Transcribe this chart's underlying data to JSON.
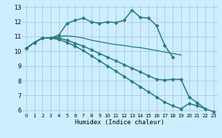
{
  "title": "",
  "xlabel": "Humidex (Indice chaleur)",
  "background_color": "#cceeff",
  "grid_color": "#aacccc",
  "line_color": "#2d7d7d",
  "xlim": [
    -0.5,
    23.5
  ],
  "ylim": [
    5.8,
    13.2
  ],
  "xticks": [
    0,
    1,
    2,
    3,
    4,
    5,
    6,
    7,
    8,
    9,
    10,
    11,
    12,
    13,
    14,
    15,
    16,
    17,
    18,
    19,
    20,
    21,
    22,
    23
  ],
  "yticks": [
    6,
    7,
    8,
    9,
    10,
    11,
    12,
    13
  ],
  "series": [
    {
      "x": [
        0,
        1,
        2,
        3,
        4,
        5,
        6,
        7,
        8,
        9,
        10,
        11,
        12,
        13,
        14,
        15,
        16,
        17,
        18
      ],
      "y": [
        10.2,
        10.6,
        10.9,
        10.9,
        11.1,
        11.9,
        12.1,
        12.25,
        12.0,
        11.9,
        12.0,
        11.95,
        12.1,
        12.8,
        12.3,
        12.25,
        11.75,
        10.4,
        9.6
      ],
      "marker": "D",
      "markersize": 2.5,
      "linewidth": 1.2
    },
    {
      "x": [
        0,
        1,
        2,
        3,
        4,
        5,
        6,
        7,
        8,
        9,
        10,
        11,
        12,
        13,
        14,
        15,
        16,
        17,
        18,
        19
      ],
      "y": [
        10.2,
        10.6,
        10.9,
        10.9,
        11.0,
        11.05,
        11.0,
        10.9,
        10.75,
        10.65,
        10.55,
        10.45,
        10.4,
        10.3,
        10.25,
        10.15,
        10.05,
        9.95,
        9.85,
        9.75
      ],
      "marker": null,
      "markersize": 0,
      "linewidth": 1.0
    },
    {
      "x": [
        0,
        1,
        2,
        3,
        4,
        5,
        6,
        7,
        8,
        9,
        10,
        11,
        12,
        13,
        14,
        15,
        16,
        17,
        18,
        19,
        20,
        21,
        22
      ],
      "y": [
        10.2,
        10.6,
        10.9,
        10.9,
        10.9,
        10.75,
        10.55,
        10.35,
        10.1,
        9.85,
        9.6,
        9.35,
        9.1,
        8.85,
        8.6,
        8.35,
        8.1,
        8.05,
        8.1,
        8.1,
        6.9,
        6.5,
        6.1
      ],
      "marker": "D",
      "markersize": 2.5,
      "linewidth": 1.2
    },
    {
      "x": [
        0,
        1,
        2,
        3,
        4,
        5,
        6,
        7,
        8,
        9,
        10,
        11,
        12,
        13,
        14,
        15,
        16,
        17,
        18,
        19,
        20,
        21,
        22,
        23
      ],
      "y": [
        10.2,
        10.6,
        10.9,
        10.9,
        10.8,
        10.6,
        10.35,
        10.05,
        9.7,
        9.35,
        9.0,
        8.65,
        8.3,
        7.95,
        7.6,
        7.25,
        6.9,
        6.55,
        6.3,
        6.1,
        6.45,
        6.3,
        6.1,
        5.9
      ],
      "marker": "D",
      "markersize": 2.5,
      "linewidth": 1.2
    }
  ]
}
